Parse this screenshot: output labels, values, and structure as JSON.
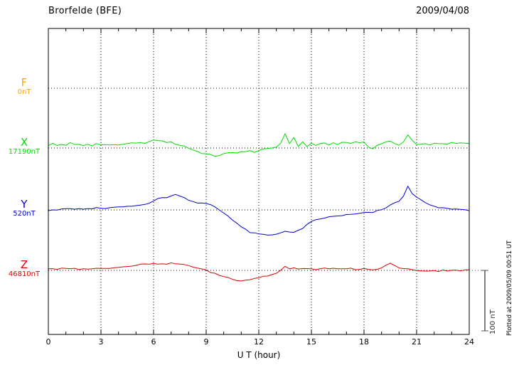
{
  "header": {
    "station": "Brorfelde (BFE)",
    "date": "2009/04/08"
  },
  "x_axis": {
    "label": "U T (hour)",
    "tick_labels": [
      "0",
      "3",
      "6",
      "9",
      "12",
      "15",
      "18",
      "21",
      "24"
    ]
  },
  "scale_bar": {
    "label": "100 nT",
    "span_nT": 100
  },
  "note": {
    "plotted_at": "Plotted at 2009/05/09 00:51 UT"
  },
  "channels": [
    {
      "id": "F",
      "name": "F",
      "baseline_label": "0nT",
      "color": "#FFA500"
    },
    {
      "id": "X",
      "name": "X",
      "baseline_label": "17190nT",
      "color": "#00DD00"
    },
    {
      "id": "Y",
      "name": "Y",
      "baseline_label": "520nT",
      "color": "#0000DD"
    },
    {
      "id": "Z",
      "name": "Z",
      "baseline_label": "46810nT",
      "color": "#DD0000"
    }
  ],
  "chart_data": {
    "type": "line",
    "title": "Brorfelde (BFE) magnetogram 2009/04/08",
    "xlabel": "U T (hour)",
    "x_range_hours": [
      0,
      24
    ],
    "x_tick_step_hours": 3,
    "sample_step_hours": 0.25,
    "scale_bar_nT": 100,
    "grid": "dotted",
    "series": [
      {
        "name": "F",
        "baseline_nT": 0,
        "color": "#FFA500",
        "noise_nT": 0,
        "offsets_nT": []
      },
      {
        "name": "X",
        "baseline_nT": 17190,
        "color": "#00DD00",
        "noise_nT": 1.5,
        "offsets_nT": [
          5,
          7,
          4,
          6,
          5,
          8,
          5,
          6,
          4,
          6,
          5,
          7,
          5,
          6,
          4,
          6,
          5,
          7,
          6,
          8,
          7,
          8,
          9,
          10,
          12,
          13,
          11,
          10,
          9,
          7,
          5,
          3,
          0,
          -3,
          -6,
          -8,
          -10,
          -12,
          -13,
          -12,
          -10,
          -9,
          -8,
          -7,
          -6,
          -7,
          -5,
          -6,
          -4,
          -3,
          -2,
          0,
          2,
          8,
          25,
          6,
          18,
          3,
          10,
          2,
          8,
          5,
          6,
          7,
          6,
          8,
          7,
          8,
          9,
          8,
          10,
          9,
          10,
          3,
          -2,
          5,
          8,
          9,
          10,
          8,
          6,
          10,
          22,
          12,
          5,
          6,
          7,
          6,
          8,
          7,
          8,
          7,
          8,
          7,
          8,
          7,
          8
        ]
      },
      {
        "name": "Y",
        "baseline_nT": 520,
        "color": "#0000DD",
        "noise_nT": 1.2,
        "offsets_nT": [
          0,
          1,
          0,
          2,
          1,
          2,
          1,
          2,
          1,
          2,
          2,
          3,
          2,
          3,
          3,
          4,
          4,
          5,
          5,
          6,
          7,
          8,
          10,
          12,
          15,
          18,
          20,
          21,
          23,
          25,
          24,
          20,
          17,
          14,
          12,
          11,
          10,
          8,
          5,
          0,
          -5,
          -10,
          -16,
          -22,
          -28,
          -33,
          -37,
          -39,
          -40,
          -41,
          -42,
          -41,
          -40,
          -37,
          -35,
          -37,
          -38,
          -34,
          -30,
          -25,
          -20,
          -17,
          -15,
          -13,
          -12,
          -11,
          -10,
          -9,
          -8,
          -8,
          -7,
          -6,
          -5,
          -5,
          -4,
          -2,
          0,
          4,
          8,
          11,
          15,
          22,
          40,
          28,
          20,
          16,
          12,
          8,
          5,
          4,
          3,
          2,
          2,
          1,
          1,
          0,
          0
        ]
      },
      {
        "name": "Z",
        "baseline_nT": 46810,
        "color": "#DD0000",
        "noise_nT": 1.0,
        "offsets_nT": [
          3,
          3,
          2,
          3,
          3,
          2,
          3,
          2,
          2,
          3,
          3,
          3,
          3,
          4,
          4,
          5,
          5,
          6,
          7,
          8,
          9,
          10,
          10,
          11,
          12,
          11,
          10,
          11,
          12,
          11,
          10,
          9,
          8,
          6,
          4,
          2,
          0,
          -3,
          -5,
          -8,
          -10,
          -12,
          -14,
          -16,
          -17,
          -16,
          -15,
          -13,
          -12,
          -10,
          -9,
          -7,
          -5,
          0,
          6,
          2,
          5,
          2,
          3,
          2,
          3,
          2,
          2,
          3,
          2,
          3,
          3,
          2,
          2,
          3,
          2,
          2,
          3,
          1,
          0,
          2,
          4,
          8,
          12,
          8,
          5,
          3,
          2,
          1,
          0,
          -1,
          -2,
          -1,
          0,
          -1,
          0,
          -1,
          0,
          0,
          0,
          0,
          0
        ]
      }
    ]
  }
}
